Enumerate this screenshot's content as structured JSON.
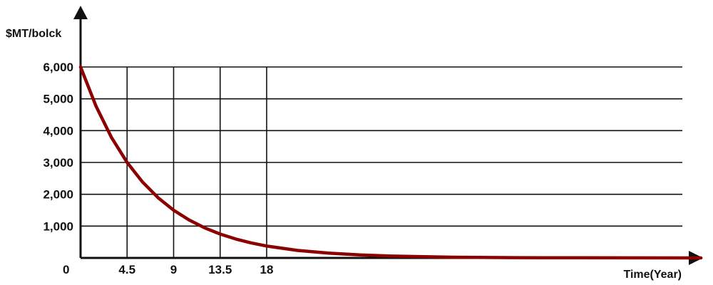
{
  "chart_data": {
    "type": "line",
    "ylabel": "$MT/bolck",
    "xlabel": "Time(Year)",
    "origin_label": "0",
    "x_ticks": [
      4.5,
      9,
      13.5,
      18
    ],
    "x_tick_labels": [
      "4.5",
      "9",
      "13.5",
      "18"
    ],
    "y_ticks": [
      1000,
      2000,
      3000,
      4000,
      5000,
      6000
    ],
    "y_tick_labels": [
      "1,000",
      "2,000",
      "3,000",
      "4,000",
      "5,000",
      "6,000"
    ],
    "xlim": [
      0,
      60
    ],
    "ylim": [
      0,
      6000
    ],
    "grid": true,
    "series": [
      {
        "color": "#8b0000",
        "x": [
          0,
          1.5,
          3,
          4.5,
          6,
          7.5,
          9,
          10.5,
          12,
          13.5,
          15,
          16.5,
          18,
          21,
          24,
          27,
          30,
          36,
          42,
          48,
          54,
          60
        ],
        "y": [
          6000,
          4762,
          3780,
          3000,
          2381,
          1890,
          1500,
          1191,
          945,
          750,
          595,
          472,
          375,
          236,
          149,
          94,
          59,
          23,
          9,
          4,
          2,
          1
        ]
      }
    ],
    "colors": {
      "axis": "#111111",
      "grid": "#111111",
      "line": "#8b0000"
    }
  }
}
